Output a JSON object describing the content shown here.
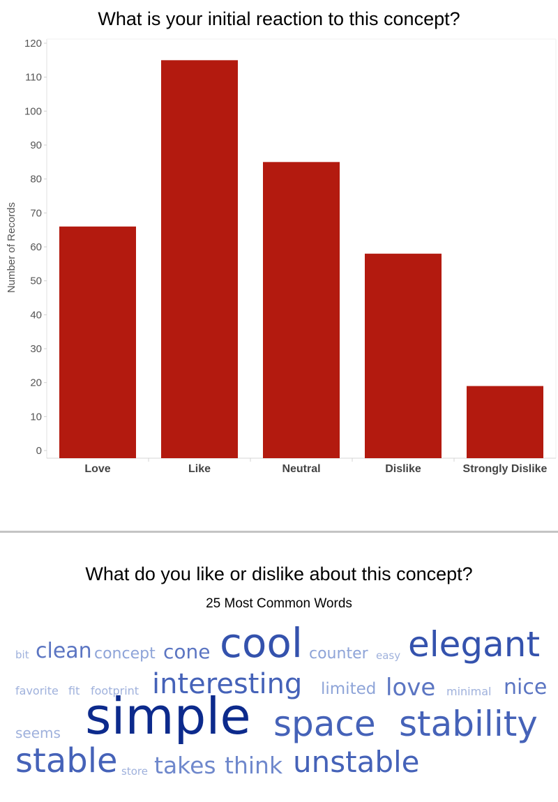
{
  "chart_data": {
    "type": "bar",
    "title": "What is your initial reaction to this concept?",
    "categories": [
      "Love",
      "Like",
      "Neutral",
      "Dislike",
      "Strongly Dislike"
    ],
    "values": [
      66,
      115,
      85,
      58,
      19
    ],
    "xlabel": "",
    "ylabel": "Number of Records",
    "ylim": [
      0,
      120
    ],
    "yticks": [
      0,
      10,
      20,
      30,
      40,
      50,
      60,
      70,
      80,
      90,
      100,
      110,
      120
    ],
    "bar_color": "#b31a0f",
    "grid": false
  },
  "word_cloud": {
    "title": "What do you like or dislike about this concept?",
    "subtitle": "25 Most Common Words",
    "words": [
      {
        "text": "bit",
        "color": "#9fb1dc"
      },
      {
        "text": "clean",
        "color": "#5b75c2"
      },
      {
        "text": "concept",
        "color": "#8ea4d8"
      },
      {
        "text": "cone",
        "color": "#5b75c2"
      },
      {
        "text": "cool",
        "color": "#3452ad"
      },
      {
        "text": "counter",
        "color": "#8ea4d8"
      },
      {
        "text": "easy",
        "color": "#9fb1dc"
      },
      {
        "text": "elegant",
        "color": "#3452ad"
      },
      {
        "text": "favorite",
        "color": "#9fb1dc"
      },
      {
        "text": "fit",
        "color": "#9fb1dc"
      },
      {
        "text": "footprint",
        "color": "#9fb1dc"
      },
      {
        "text": "interesting",
        "color": "#4562b8"
      },
      {
        "text": "limited",
        "color": "#8ea4d8"
      },
      {
        "text": "love",
        "color": "#5b75c2"
      },
      {
        "text": "minimal",
        "color": "#9fb1dc"
      },
      {
        "text": "nice",
        "color": "#5b75c2"
      },
      {
        "text": "seems",
        "color": "#9fb1dc"
      },
      {
        "text": "simple",
        "color": "#0c2a8c"
      },
      {
        "text": "space",
        "color": "#4562b8"
      },
      {
        "text": "stability",
        "color": "#4562b8"
      },
      {
        "text": "stable",
        "color": "#4562b8"
      },
      {
        "text": "store",
        "color": "#9fb1dc"
      },
      {
        "text": "takes",
        "color": "#6f88cc"
      },
      {
        "text": "think",
        "color": "#6f88cc"
      },
      {
        "text": "unstable",
        "color": "#4562b8"
      }
    ]
  }
}
